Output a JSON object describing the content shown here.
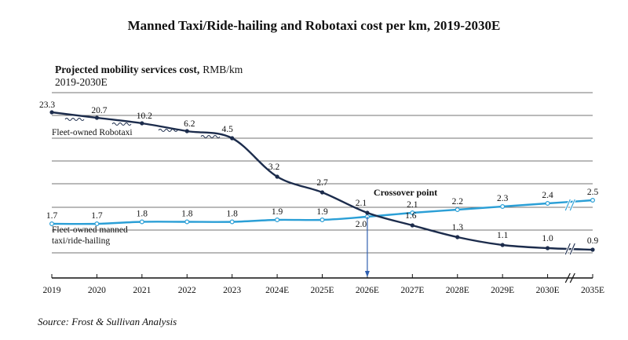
{
  "chart_data": {
    "type": "line",
    "title": "Manned Taxi/Ride-hailing and Robotaxi cost per km, 2019-2030E",
    "subtitle": "Projected mobility services cost,",
    "subtitle_unit": "RMB/km",
    "subtitle_period": "2019-2030E",
    "categories": [
      "2019",
      "2020",
      "2021",
      "2022",
      "2023",
      "2024E",
      "2025E",
      "2026E",
      "2027E",
      "2028E",
      "2029E",
      "2030E",
      "2035E"
    ],
    "axis_break_after": "2030E",
    "grid": true,
    "series": [
      {
        "name": "Fleet-owned Robotaxi",
        "color": "#1c2c4c",
        "values": [
          23.3,
          20.7,
          10.2,
          6.2,
          4.5,
          3.2,
          2.7,
          2.1,
          1.6,
          1.3,
          1.1,
          1.0,
          0.9
        ]
      },
      {
        "name": "Fleet-owned manned taxi/ride-hailing",
        "color": "#2b9fd6",
        "values": [
          1.7,
          1.7,
          1.8,
          1.8,
          1.8,
          1.9,
          1.9,
          2.0,
          2.1,
          2.2,
          2.3,
          2.4,
          2.5
        ]
      }
    ],
    "annotations": [
      {
        "text": "Crossover point",
        "category": "2026E"
      }
    ],
    "source": "Source: Frost & Sullivan Analysis"
  }
}
